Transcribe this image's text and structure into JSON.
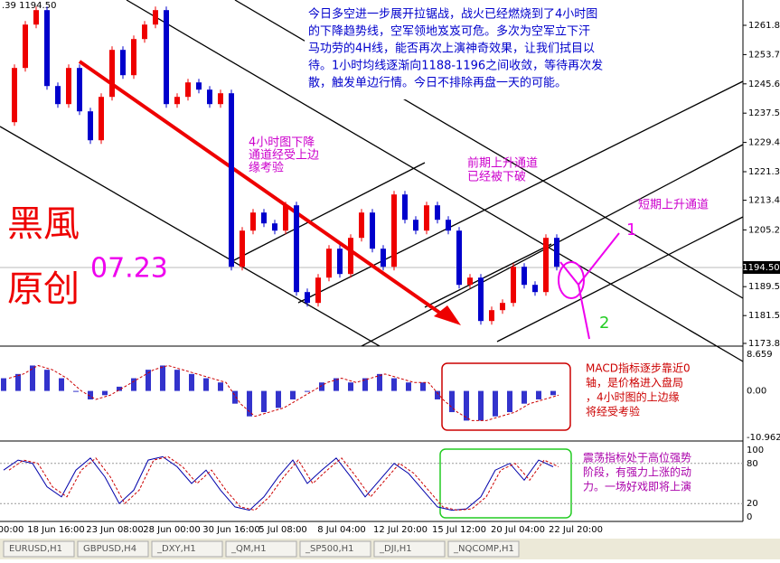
{
  "header": ".39 1194.50",
  "price_axis": {
    "ylim": [
      1261.8,
      1173.8
    ],
    "ticks": [
      {
        "value": 1261.8,
        "label": "1261.80"
      },
      {
        "value": 1253.7,
        "label": "1253.70"
      },
      {
        "value": 1245.6,
        "label": "1245.60"
      },
      {
        "value": 1237.5,
        "label": "1237.50"
      },
      {
        "value": 1229.4,
        "label": "1229.40"
      },
      {
        "value": 1221.3,
        "label": "1221.30"
      },
      {
        "value": 1213.4,
        "label": "1213.40"
      },
      {
        "value": 1205.2,
        "label": "1205.20"
      },
      {
        "value": 1189.5,
        "label": "1189.50"
      },
      {
        "value": 1181.5,
        "label": "1181.50"
      },
      {
        "value": 1173.8,
        "label": "1173.80"
      }
    ],
    "current": {
      "value": 1194.5,
      "label": "1194.50"
    }
  },
  "closes": [
    1235,
    1250,
    1262,
    1266,
    1245,
    1240,
    1250,
    1238,
    1230,
    1242,
    1255,
    1248,
    1258,
    1262,
    1266,
    1240,
    1242,
    1246,
    1244,
    1240,
    1243,
    1195,
    1205,
    1210,
    1207,
    1205,
    1212,
    1188,
    1185,
    1192,
    1200,
    1193,
    1203,
    1210,
    1200,
    1195,
    1215,
    1208,
    1205,
    1212,
    1208,
    1205,
    1190,
    1192,
    1180,
    1183,
    1185,
    1195,
    1190,
    1188,
    1203,
    1195
  ],
  "macd": {
    "ylim": [
      8.659,
      -10.962
    ],
    "ticks": [
      {
        "value": 8.659,
        "label": "8.659"
      },
      {
        "value": 0,
        "label": "0.00"
      },
      {
        "value": -10.962,
        "label": "-10.962"
      }
    ],
    "values": [
      3,
      4,
      6,
      5,
      3,
      0,
      -2,
      -1,
      1,
      3,
      5,
      6,
      5,
      4,
      3,
      2,
      -3,
      -6,
      -5,
      -4,
      -2,
      0,
      2,
      3,
      2,
      3,
      4,
      3,
      2,
      2,
      -2,
      -5,
      -7,
      -7,
      -6,
      -5,
      -3,
      -2,
      -1
    ]
  },
  "stoch": {
    "ylim": [
      100,
      0
    ],
    "ticks": [
      100,
      80,
      20,
      0
    ],
    "values": [
      70,
      85,
      80,
      45,
      30,
      70,
      88,
      60,
      20,
      40,
      85,
      90,
      75,
      50,
      70,
      40,
      15,
      10,
      30,
      60,
      85,
      50,
      70,
      88,
      60,
      30,
      55,
      80,
      65,
      40,
      15,
      10,
      12,
      30,
      70,
      80,
      55,
      85,
      75
    ]
  },
  "time_labels": [
    "00:00",
    "18 Jun 16:00",
    "23 Jun 08:00",
    "28 Jun 00:00",
    "30 Jun 16:00",
    "5 Jul 08:00",
    "8 Jul 04:00",
    "12 Jul 20:00",
    "15 Jul 12:00",
    "20 Jul 04:00",
    "22 Jul 20:00"
  ],
  "tabs": [
    "EURUSD,H1",
    "GBPUSD,H4",
    "_DXY,H1",
    "_QM,H1",
    "_SP500,H1",
    "_DJI,H1",
    "_NQCOMP,H1"
  ],
  "annotations": {
    "summary": [
      "今日多空进一步展开拉锯战，战火已经燃烧到了4小时图",
      "的下降趋势线，空军领地岌岌可危。多次为空军立下汗",
      "马功劳的4H线，能否再次上演神奇效果，让我们拭目以",
      "待。1小时均线逐渐向1188-1196之间收敛，等待再次发",
      "散，触发单边行情。今日不排除再盘一天的可能。"
    ],
    "down_channel": [
      "4小时图下降",
      "通道经受上边",
      "缘考验"
    ],
    "prior_channel": [
      "前期上升通道",
      "已经被下破"
    ],
    "short_channel": "短期上升通道",
    "author": [
      "黑風",
      "原创"
    ],
    "date": "07.23",
    "scenario_1": "1",
    "scenario_2": "2",
    "macd_note": [
      "MACD指标逐步靠近0",
      "轴，是价格进入盘局",
      "，4小时图的上边缘",
      "将经受考验"
    ],
    "stoch_note": [
      "震荡指标处于高位强势",
      "阶段，有强力上涨的动",
      "力。一场好戏即将上演"
    ]
  }
}
